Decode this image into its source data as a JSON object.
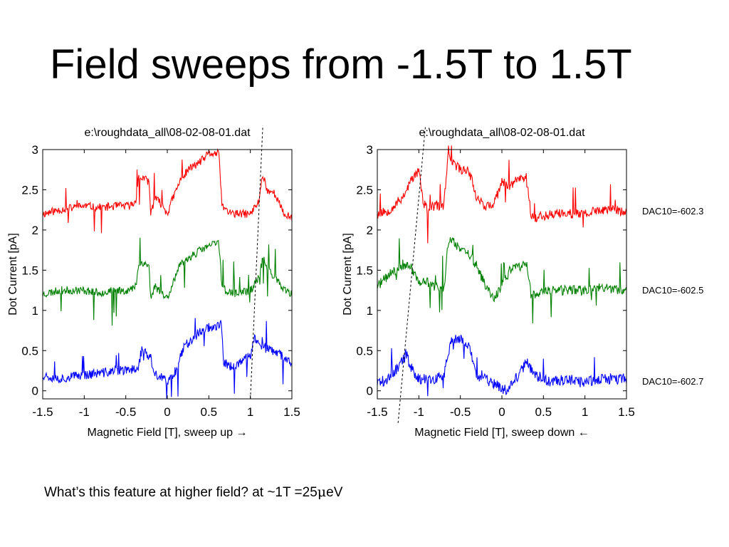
{
  "slide": {
    "title": "Field sweeps from -1.5T to 1.5T",
    "caption_pre": "What’s this feature at higher field? at ~1T =25",
    "caption_mu": "μ",
    "caption_post": "eV"
  },
  "dac_labels": [
    "DAC10=-602.3",
    "DAC10=-602.5",
    "DAC10=-602.7"
  ],
  "chart_data": [
    {
      "type": "line",
      "title": "e:\\roughdata_all\\08-02-08-01.dat",
      "xlabel": "Magnetic Field [T], sweep up →",
      "ylabel": "Dot Current [pA]",
      "xlim": [
        -1.5,
        1.5
      ],
      "ylim": [
        -0.1,
        3.0
      ],
      "xticks": [
        "-1.5",
        "-1",
        "-0.5",
        "0",
        "0.5",
        "1",
        "1.5"
      ],
      "yticks": [
        "0",
        "0.5",
        "1",
        "1.5",
        "2",
        "2.5",
        "3"
      ],
      "grid": false,
      "series": [
        {
          "color": "#ff0000",
          "noise": 0.05,
          "seed": 11,
          "x": [
            -1.5,
            -1.3,
            -1.0,
            -0.8,
            -0.6,
            -0.45,
            -0.38,
            -0.35,
            -0.3,
            -0.22,
            -0.2,
            -0.15,
            -0.05,
            0.0,
            0.05,
            0.15,
            0.25,
            0.4,
            0.5,
            0.62,
            0.66,
            0.7,
            0.8,
            1.0,
            1.1,
            1.15,
            1.2,
            1.3,
            1.4,
            1.5
          ],
          "y": [
            2.2,
            2.25,
            2.3,
            2.28,
            2.3,
            2.3,
            2.35,
            2.65,
            2.65,
            2.6,
            2.2,
            2.4,
            2.3,
            2.2,
            2.35,
            2.6,
            2.75,
            2.85,
            2.95,
            2.95,
            2.3,
            2.25,
            2.2,
            2.2,
            2.35,
            2.7,
            2.5,
            2.45,
            2.2,
            2.15
          ]
        },
        {
          "color": "#008000",
          "noise": 0.05,
          "seed": 23,
          "x": [
            -1.5,
            -1.3,
            -1.0,
            -0.8,
            -0.6,
            -0.45,
            -0.38,
            -0.35,
            -0.3,
            -0.22,
            -0.2,
            -0.15,
            -0.05,
            0.0,
            0.05,
            0.15,
            0.25,
            0.4,
            0.5,
            0.62,
            0.66,
            0.7,
            0.8,
            1.0,
            1.1,
            1.15,
            1.2,
            1.3,
            1.4,
            1.5
          ],
          "y": [
            1.2,
            1.25,
            1.25,
            1.22,
            1.25,
            1.25,
            1.3,
            1.55,
            1.6,
            1.55,
            1.15,
            1.3,
            1.2,
            1.15,
            1.3,
            1.55,
            1.65,
            1.75,
            1.8,
            1.85,
            1.3,
            1.25,
            1.2,
            1.25,
            1.4,
            1.65,
            1.55,
            1.4,
            1.25,
            1.2
          ]
        },
        {
          "color": "#0000ff",
          "noise": 0.06,
          "seed": 37,
          "x": [
            -1.5,
            -1.3,
            -1.0,
            -0.8,
            -0.6,
            -0.45,
            -0.35,
            -0.3,
            -0.25,
            -0.2,
            -0.15,
            -0.05,
            0.0,
            0.1,
            0.2,
            0.3,
            0.45,
            0.55,
            0.65,
            0.68,
            0.75,
            0.9,
            1.0,
            1.05,
            1.15,
            1.25,
            1.35,
            1.5
          ],
          "y": [
            0.2,
            0.15,
            0.2,
            0.22,
            0.25,
            0.25,
            0.3,
            0.55,
            0.45,
            0.4,
            0.2,
            0.15,
            0.1,
            0.25,
            0.55,
            0.65,
            0.78,
            0.8,
            0.82,
            0.35,
            0.3,
            0.35,
            0.45,
            0.65,
            0.55,
            0.5,
            0.45,
            0.35
          ]
        }
      ],
      "annotation_line": {
        "x": [
          1.0,
          1.15
        ],
        "y": [
          -0.1,
          3.3
        ],
        "style": "dashed"
      }
    },
    {
      "type": "line",
      "title": "e:\\roughdata_all\\08-02-08-01.dat",
      "xlabel": "Magnetic Field [T], sweep down ←",
      "ylabel": "Dot Current [pA]",
      "xlim": [
        -1.5,
        1.5
      ],
      "ylim": [
        -0.1,
        3.0
      ],
      "xticks": [
        "-1.5",
        "-1",
        "-0.5",
        "0",
        "0.5",
        "1",
        "1.5"
      ],
      "yticks": [
        "0",
        "0.5",
        "1",
        "1.5",
        "2",
        "2.5",
        "3"
      ],
      "grid": false,
      "series": [
        {
          "color": "#ff0000",
          "noise": 0.06,
          "seed": 53,
          "x": [
            -1.5,
            -1.35,
            -1.2,
            -1.1,
            -1.0,
            -0.95,
            -0.9,
            -0.8,
            -0.7,
            -0.65,
            -0.6,
            -0.5,
            -0.4,
            -0.3,
            -0.2,
            -0.1,
            0.0,
            0.1,
            0.2,
            0.3,
            0.35,
            0.4,
            0.6,
            0.8,
            1.0,
            1.2,
            1.4,
            1.5
          ],
          "y": [
            2.2,
            2.25,
            2.4,
            2.6,
            2.75,
            2.35,
            2.25,
            2.3,
            2.3,
            2.9,
            2.85,
            2.75,
            2.75,
            2.4,
            2.3,
            2.3,
            2.6,
            2.55,
            2.65,
            2.65,
            2.2,
            2.15,
            2.2,
            2.2,
            2.2,
            2.25,
            2.25,
            2.2
          ]
        },
        {
          "color": "#008000",
          "noise": 0.06,
          "seed": 71,
          "x": [
            -1.5,
            -1.35,
            -1.2,
            -1.1,
            -1.0,
            -0.9,
            -0.8,
            -0.7,
            -0.65,
            -0.6,
            -0.5,
            -0.4,
            -0.3,
            -0.2,
            -0.1,
            0.0,
            0.1,
            0.2,
            0.3,
            0.35,
            0.4,
            0.6,
            0.8,
            1.0,
            1.2,
            1.4,
            1.5
          ],
          "y": [
            1.3,
            1.45,
            1.55,
            1.55,
            1.35,
            1.35,
            1.3,
            1.25,
            1.8,
            1.9,
            1.75,
            1.7,
            1.55,
            1.3,
            1.15,
            1.3,
            1.5,
            1.55,
            1.55,
            1.2,
            1.2,
            1.25,
            1.25,
            1.25,
            1.3,
            1.25,
            1.25
          ]
        },
        {
          "color": "#0000ff",
          "noise": 0.07,
          "seed": 89,
          "x": [
            -1.5,
            -1.35,
            -1.25,
            -1.15,
            -1.1,
            -1.0,
            -0.9,
            -0.8,
            -0.7,
            -0.6,
            -0.5,
            -0.4,
            -0.3,
            -0.2,
            -0.1,
            0.0,
            0.1,
            0.2,
            0.3,
            0.4,
            0.6,
            0.8,
            1.0,
            1.2,
            1.4,
            1.5
          ],
          "y": [
            0.1,
            0.15,
            0.3,
            0.45,
            0.3,
            0.15,
            0.15,
            0.15,
            0.2,
            0.65,
            0.65,
            0.55,
            0.2,
            0.15,
            0.1,
            0.0,
            0.05,
            0.2,
            0.35,
            0.2,
            0.1,
            0.15,
            0.1,
            0.15,
            0.15,
            0.15
          ]
        }
      ],
      "annotation_line": {
        "x": [
          -1.25,
          -0.92
        ],
        "y": [
          -0.4,
          3.3
        ],
        "style": "dashed"
      }
    }
  ]
}
